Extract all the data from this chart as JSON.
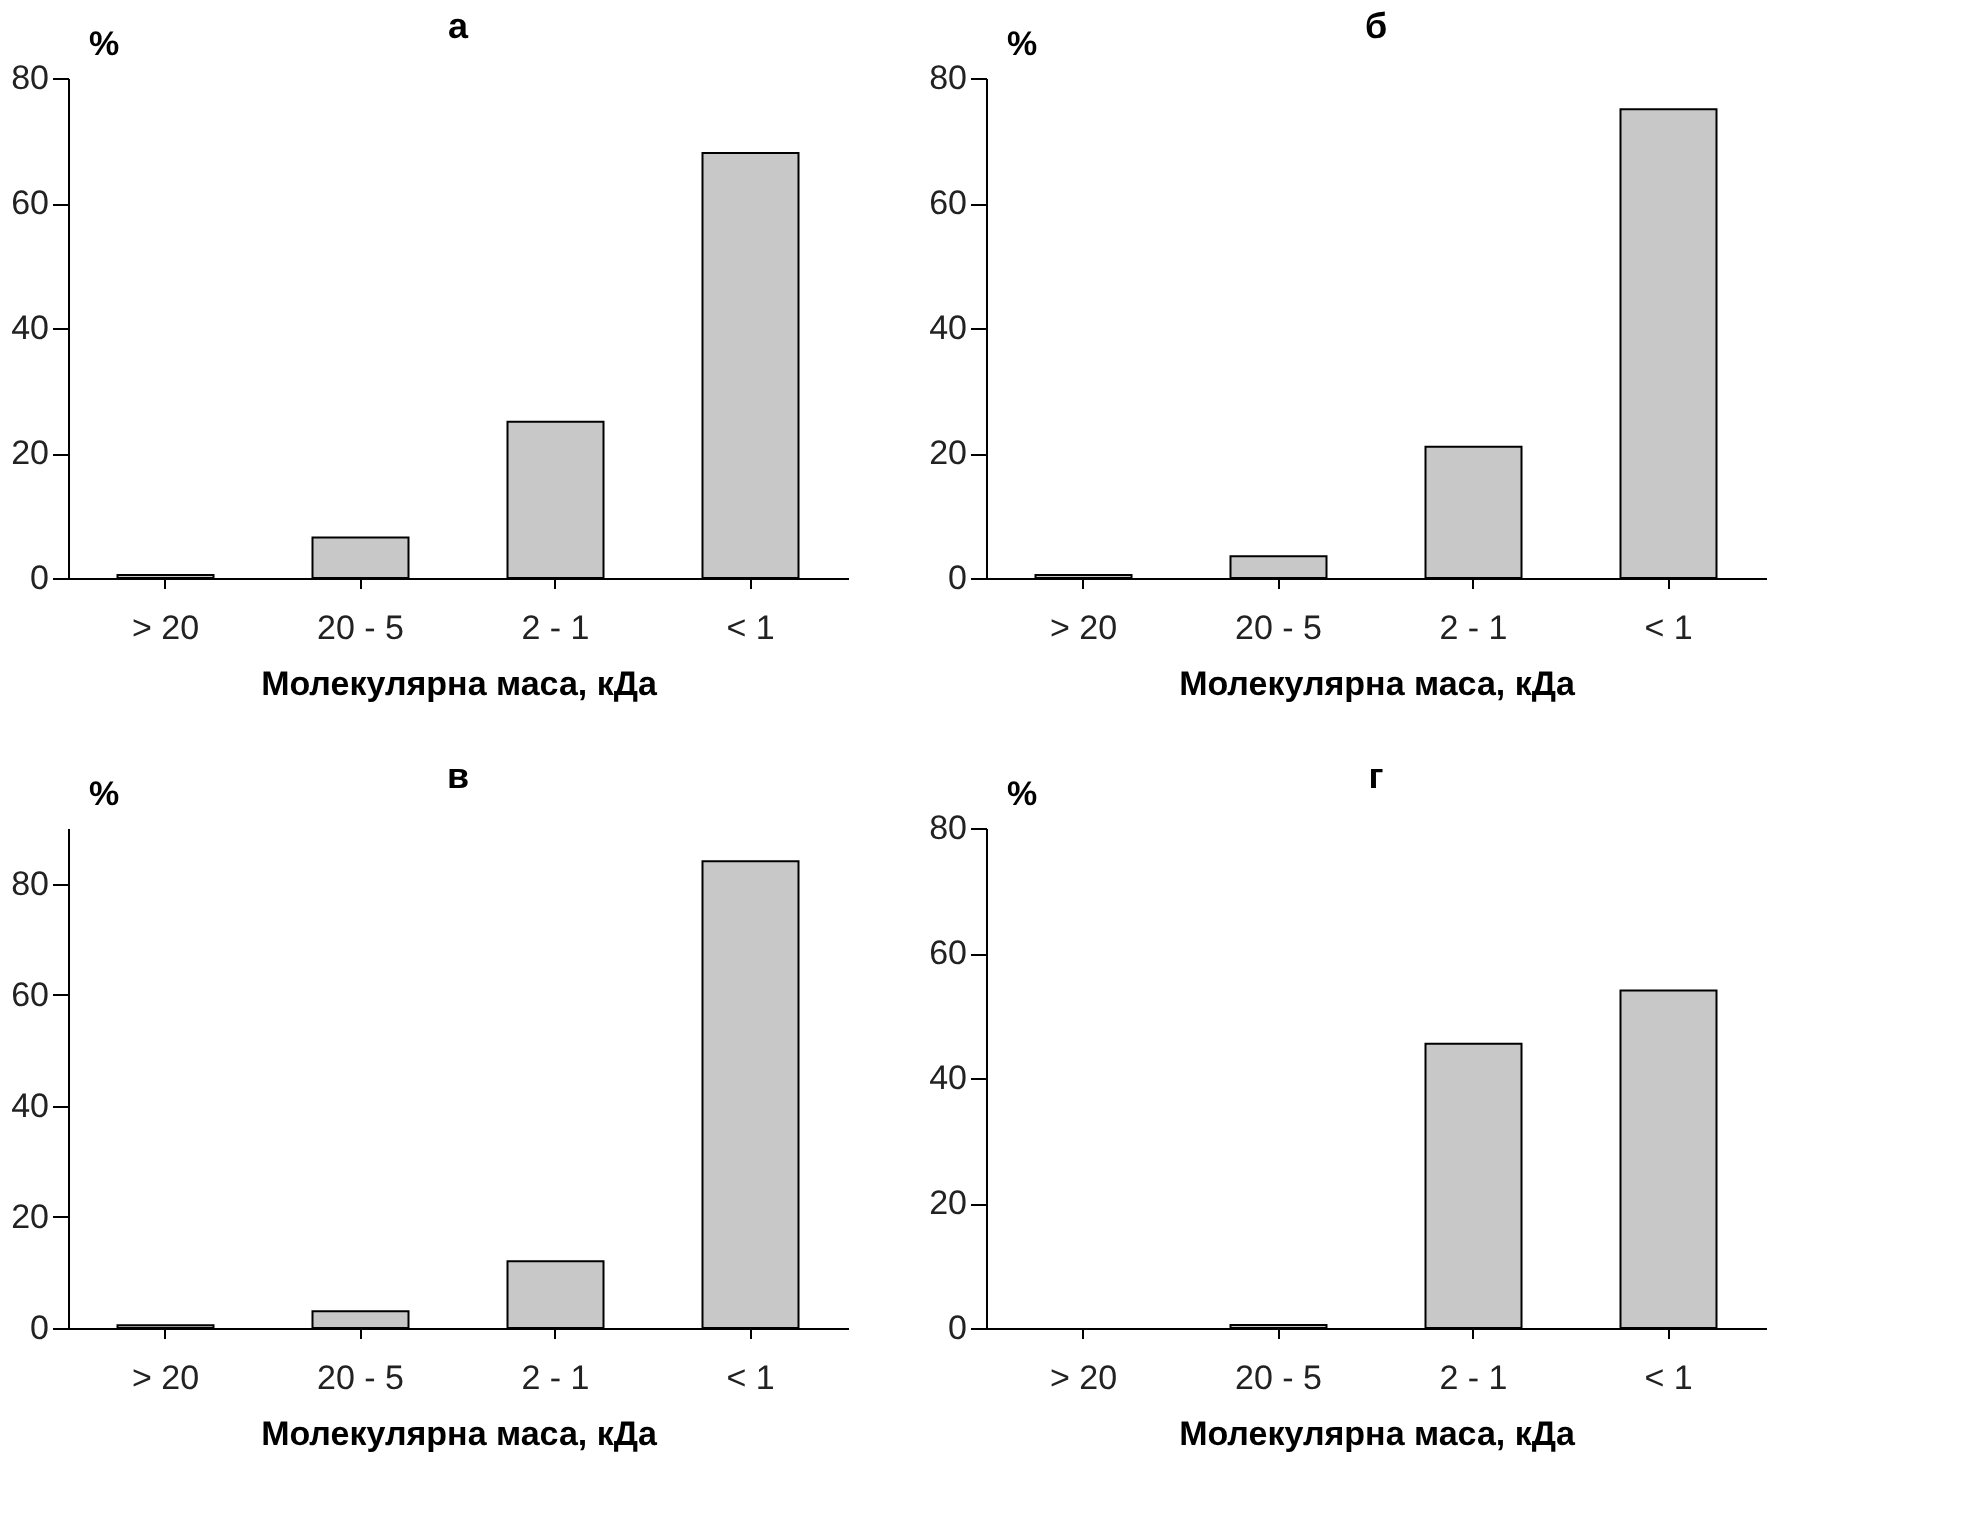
{
  "chart_data": [
    {
      "type": "bar",
      "title": "а",
      "ylabel": "%",
      "xlabel": "Молекулярна маса, кДа",
      "categories": [
        "> 20",
        "20 - 5",
        "2 - 1",
        "<  1"
      ],
      "values": [
        0.5,
        6.5,
        25,
        68
      ],
      "color": "#c8c8c8",
      "ylim": [
        0,
        80
      ],
      "yticks": [
        0,
        20,
        40,
        60,
        80
      ],
      "grid": false
    },
    {
      "type": "bar",
      "title": "б",
      "ylabel": "%",
      "xlabel": "Молекулярна маса, кДа",
      "categories": [
        "> 20",
        "20 - 5",
        "2 - 1",
        "<  1"
      ],
      "values": [
        0.5,
        3.5,
        21,
        75
      ],
      "color": "#c8c8c8",
      "ylim": [
        0,
        80
      ],
      "yticks": [
        0,
        20,
        40,
        60,
        80
      ],
      "grid": false
    },
    {
      "type": "bar",
      "title": "в",
      "ylabel": "%",
      "xlabel": "Молекулярна маса, кДа",
      "categories": [
        "> 20",
        "20 - 5",
        "2 - 1",
        "<  1"
      ],
      "values": [
        0.5,
        3,
        12,
        84
      ],
      "color": "#c8c8c8",
      "ylim": [
        0,
        90
      ],
      "yticks": [
        0,
        20,
        40,
        60,
        80
      ],
      "grid": false
    },
    {
      "type": "bar",
      "title": "г",
      "ylabel": "%",
      "xlabel": "Молекулярна маса, кДа",
      "categories": [
        "> 20",
        "20 - 5",
        "2 - 1",
        "<  1"
      ],
      "values": [
        0,
        0.5,
        45.5,
        54
      ],
      "color": "#c8c8c8",
      "ylim": [
        0,
        80
      ],
      "yticks": [
        0,
        20,
        40,
        60,
        80
      ],
      "grid": false
    }
  ]
}
